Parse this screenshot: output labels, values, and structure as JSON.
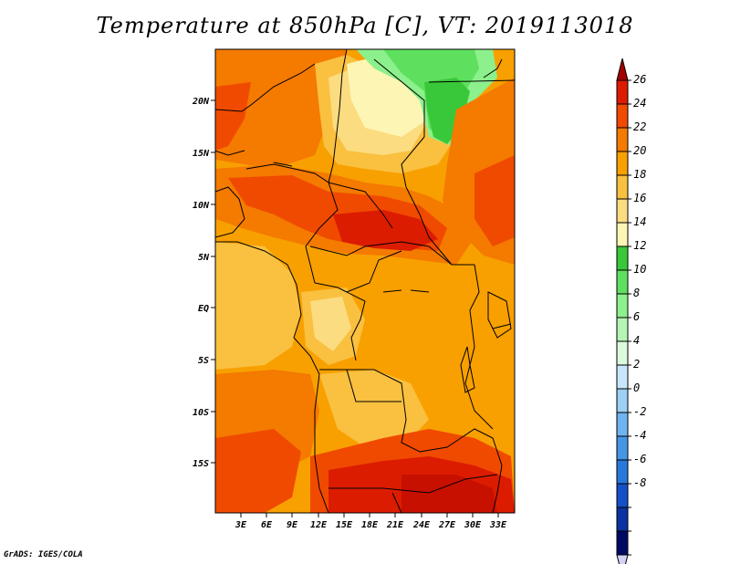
{
  "title": "Temperature at 850hPa [C], VT: 2019113018",
  "credit": "GrADS: IGES/COLA",
  "map": {
    "lat_labels": [
      "20N",
      "15N",
      "10N",
      "5N",
      "EQ",
      "5S",
      "10S",
      "15S"
    ],
    "lon_labels": [
      "3E",
      "6E",
      "9E",
      "12E",
      "15E",
      "18E",
      "21E",
      "24E",
      "27E",
      "30E",
      "33E"
    ]
  },
  "colorbar": {
    "levels": [
      "26",
      "24",
      "22",
      "20",
      "18",
      "16",
      "14",
      "12",
      "10",
      "8",
      "6",
      "4",
      "2",
      "0",
      "-2",
      "-4",
      "-6",
      "-8"
    ],
    "colors": [
      "#a50000",
      "#dc1c00",
      "#f04a00",
      "#f47a00",
      "#f8a000",
      "#fac040",
      "#fcdc80",
      "#fdf5b4",
      "#39c839",
      "#5ee05e",
      "#8cf08c",
      "#b4f5b4",
      "#dcfadc",
      "#c8e6fa",
      "#9cd0f5",
      "#6eb4f0",
      "#4696e6",
      "#2878dc",
      "#1450c8",
      "#0a32a0",
      "#000a64",
      "#d2d2f5"
    ]
  }
}
